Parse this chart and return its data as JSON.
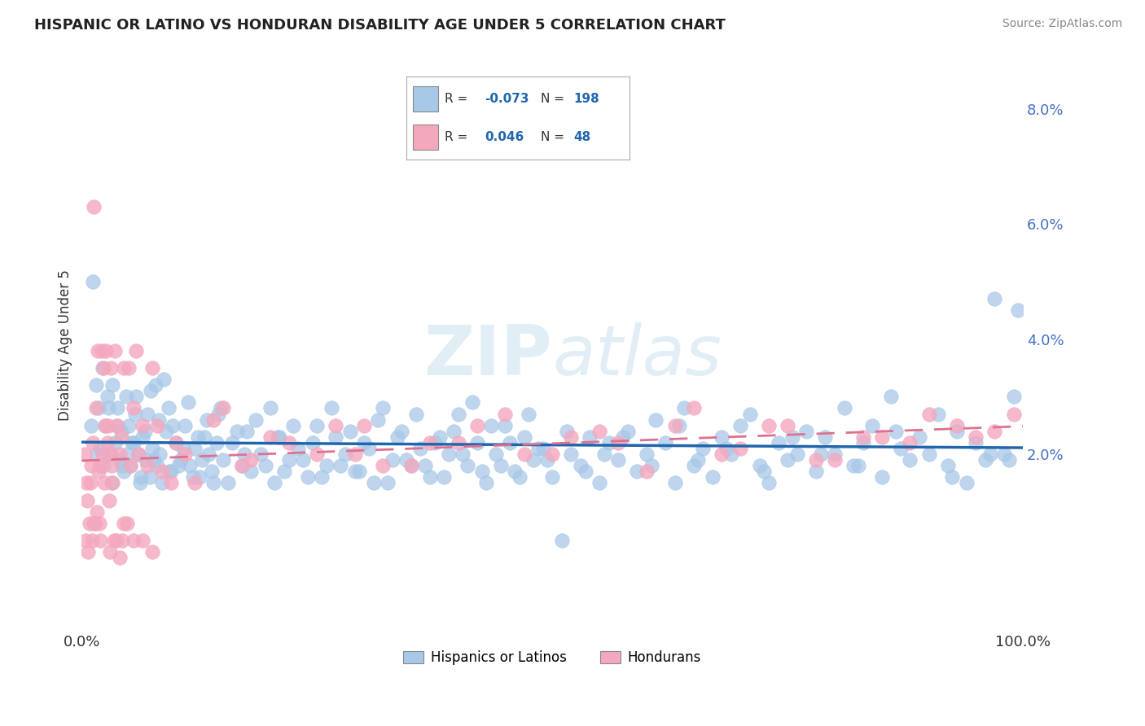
{
  "title": "HISPANIC OR LATINO VS HONDURAN DISABILITY AGE UNDER 5 CORRELATION CHART",
  "source_text": "Source: ZipAtlas.com",
  "ylabel": "Disability Age Under 5",
  "legend_label1": "Hispanics or Latinos",
  "legend_label2": "Hondurans",
  "xlim": [
    0.0,
    100.0
  ],
  "ylim": [
    -1.0,
    8.8
  ],
  "yticks": [
    0.0,
    2.0,
    4.0,
    6.0,
    8.0
  ],
  "ytick_labels": [
    "",
    "2.0%",
    "4.0%",
    "6.0%",
    "8.0%"
  ],
  "color_blue": "#a8c8e8",
  "color_pink": "#f4a8be",
  "line_blue": "#2166ac",
  "line_pink": "#e07090",
  "background_color": "#ffffff",
  "grid_color": "#cccccc",
  "blue_scatter_x": [
    1.2,
    1.5,
    1.8,
    2.0,
    2.3,
    2.5,
    2.7,
    3.0,
    3.2,
    3.5,
    3.8,
    4.0,
    4.2,
    4.5,
    4.8,
    5.0,
    5.2,
    5.5,
    5.8,
    6.0,
    6.2,
    6.5,
    6.8,
    7.0,
    7.2,
    7.5,
    7.8,
    8.0,
    8.3,
    8.5,
    9.0,
    9.2,
    9.5,
    10.0,
    10.5,
    11.0,
    11.5,
    12.0,
    12.5,
    13.0,
    13.5,
    14.0,
    14.5,
    15.0,
    16.0,
    17.0,
    17.5,
    18.0,
    19.0,
    20.0,
    20.5,
    21.0,
    22.0,
    23.0,
    24.0,
    25.0,
    26.0,
    27.0,
    28.0,
    29.0,
    30.0,
    31.0,
    32.0,
    33.0,
    34.0,
    35.0,
    36.0,
    37.0,
    38.0,
    39.0,
    40.0,
    41.0,
    42.0,
    43.0,
    44.0,
    45.0,
    46.0,
    47.0,
    48.0,
    49.0,
    50.0,
    51.0,
    52.0,
    53.0,
    54.0,
    55.0,
    56.0,
    57.0,
    58.0,
    59.0,
    60.0,
    61.0,
    62.0,
    63.0,
    64.0,
    65.0,
    66.0,
    67.0,
    68.0,
    69.0,
    70.0,
    71.0,
    72.0,
    73.0,
    74.0,
    75.0,
    76.0,
    77.0,
    78.0,
    79.0,
    80.0,
    81.0,
    82.0,
    83.0,
    84.0,
    85.0,
    86.0,
    87.0,
    88.0,
    89.0,
    90.0,
    91.0,
    92.0,
    93.0,
    94.0,
    95.0,
    96.0,
    97.0,
    98.0,
    99.0,
    99.5,
    1.0,
    1.6,
    2.2,
    2.8,
    3.3,
    3.7,
    4.3,
    4.7,
    5.3,
    5.7,
    6.3,
    6.7,
    7.3,
    7.7,
    8.2,
    8.7,
    9.3,
    9.7,
    10.3,
    10.8,
    11.3,
    11.8,
    12.3,
    12.8,
    13.3,
    13.8,
    14.3,
    14.8,
    15.5,
    16.5,
    17.3,
    18.5,
    19.5,
    20.8,
    21.5,
    22.5,
    23.5,
    24.5,
    25.5,
    26.5,
    27.5,
    28.5,
    29.5,
    30.5,
    31.5,
    32.5,
    33.5,
    34.5,
    35.5,
    36.5,
    37.5,
    38.5,
    39.5,
    40.5,
    41.5,
    42.5,
    43.5,
    44.5,
    45.5,
    46.5,
    47.5,
    48.5,
    49.5,
    51.5,
    53.5,
    55.5,
    57.5,
    60.5,
    63.5,
    65.5,
    68.5,
    72.5,
    75.5,
    78.5,
    82.5,
    86.5,
    92.5,
    96.5,
    98.5
  ],
  "blue_scatter_y": [
    5.0,
    3.2,
    2.8,
    2.1,
    1.8,
    2.5,
    3.0,
    2.0,
    1.5,
    2.2,
    2.8,
    1.9,
    2.4,
    1.7,
    2.0,
    2.5,
    1.8,
    2.2,
    3.0,
    2.0,
    1.5,
    2.3,
    1.9,
    2.7,
    1.6,
    2.1,
    3.2,
    1.8,
    2.0,
    1.5,
    2.4,
    2.8,
    1.7,
    2.2,
    1.9,
    2.5,
    1.8,
    2.1,
    1.6,
    2.3,
    2.0,
    1.5,
    2.7,
    1.9,
    2.2,
    1.8,
    2.4,
    1.7,
    2.0,
    2.8,
    1.5,
    2.3,
    1.9,
    2.1,
    1.6,
    2.5,
    1.8,
    2.3,
    2.0,
    1.7,
    2.2,
    1.5,
    2.8,
    1.9,
    2.4,
    1.8,
    2.1,
    1.6,
    2.3,
    2.0,
    2.7,
    1.8,
    2.2,
    1.5,
    2.0,
    2.5,
    1.7,
    2.3,
    1.9,
    2.1,
    1.6,
    0.5,
    2.0,
    1.8,
    2.3,
    1.5,
    2.2,
    1.9,
    2.4,
    1.7,
    2.0,
    2.6,
    2.2,
    1.5,
    2.8,
    1.8,
    2.1,
    1.6,
    2.3,
    2.0,
    2.5,
    2.7,
    1.8,
    1.5,
    2.2,
    1.9,
    2.0,
    2.4,
    1.7,
    2.3,
    2.0,
    2.8,
    1.8,
    2.2,
    2.5,
    1.6,
    3.0,
    2.1,
    1.9,
    2.3,
    2.0,
    2.7,
    1.8,
    2.4,
    1.5,
    2.2,
    1.9,
    4.7,
    2.0,
    3.0,
    4.5,
    2.5,
    2.0,
    3.5,
    2.8,
    3.2,
    2.5,
    1.8,
    3.0,
    2.2,
    2.7,
    1.6,
    2.4,
    3.1,
    1.9,
    2.6,
    3.3,
    1.7,
    2.5,
    1.8,
    2.1,
    2.9,
    1.6,
    2.3,
    1.9,
    2.6,
    1.7,
    2.2,
    2.8,
    1.5,
    2.4,
    2.0,
    2.6,
    1.8,
    2.3,
    1.7,
    2.5,
    1.9,
    2.2,
    1.6,
    2.8,
    1.8,
    2.4,
    1.7,
    2.1,
    2.6,
    1.5,
    2.3,
    1.9,
    2.7,
    1.8,
    2.2,
    1.6,
    2.4,
    2.0,
    2.9,
    1.7,
    2.5,
    1.8,
    2.2,
    1.6,
    2.7,
    2.1,
    1.9,
    2.4,
    1.7,
    2.0,
    2.3,
    1.8,
    2.5,
    1.9,
    2.1,
    1.7,
    2.3,
    2.0,
    1.8,
    2.4,
    1.6,
    2.0,
    1.9
  ],
  "pink_scatter_x": [
    0.5,
    0.8,
    1.0,
    1.2,
    1.5,
    1.8,
    2.0,
    2.2,
    2.5,
    2.7,
    3.0,
    3.2,
    3.5,
    3.8,
    4.0,
    4.5,
    5.0,
    5.5,
    6.0,
    7.0,
    8.0,
    10.0,
    12.0,
    15.0,
    18.0,
    20.0,
    22.0,
    25.0,
    27.0,
    29.0,
    30.0,
    32.0,
    35.0,
    37.0,
    40.0,
    42.0,
    45.0,
    47.0,
    50.0,
    52.0,
    55.0,
    57.0,
    60.0,
    63.0,
    65.0,
    68.0,
    70.0,
    73.0,
    75.0,
    78.0,
    80.0,
    83.0,
    85.0,
    88.0,
    90.0,
    93.0,
    95.0,
    97.0,
    99.0,
    2.3,
    2.8,
    3.3,
    4.2,
    5.2,
    6.5,
    8.5,
    11.0,
    14.0,
    17.0,
    1.3,
    1.7,
    2.1,
    2.6,
    3.1,
    4.5,
    5.8,
    7.5,
    9.5,
    0.3,
    0.6,
    0.9,
    1.1,
    1.4,
    1.6,
    1.9,
    2.4,
    2.9,
    3.4,
    3.7,
    4.3,
    4.8,
    5.5,
    6.5,
    7.5,
    0.4,
    0.7,
    1.3,
    2.0,
    3.0,
    4.0
  ],
  "pink_scatter_y": [
    1.5,
    0.8,
    1.8,
    2.2,
    2.8,
    1.7,
    1.8,
    2.0,
    2.5,
    2.2,
    2.0,
    1.8,
    3.8,
    2.5,
    2.0,
    0.8,
    3.5,
    2.8,
    2.0,
    1.8,
    2.5,
    2.2,
    1.5,
    2.8,
    1.9,
    2.3,
    2.2,
    2.0,
    2.5,
    2.0,
    2.5,
    1.8,
    1.8,
    2.2,
    2.2,
    2.5,
    2.7,
    2.0,
    2.0,
    2.3,
    2.4,
    2.2,
    1.7,
    2.5,
    2.8,
    2.0,
    2.1,
    2.5,
    2.5,
    1.9,
    1.9,
    2.3,
    2.3,
    2.2,
    2.7,
    2.5,
    2.3,
    2.4,
    2.7,
    3.5,
    2.5,
    1.5,
    2.3,
    1.8,
    2.5,
    1.7,
    2.0,
    2.6,
    1.8,
    6.3,
    3.8,
    3.8,
    3.8,
    3.5,
    3.5,
    3.8,
    3.5,
    1.5,
    2.0,
    1.2,
    1.5,
    0.5,
    0.8,
    1.0,
    0.8,
    1.5,
    1.2,
    0.5,
    0.5,
    0.5,
    0.8,
    0.5,
    0.5,
    0.3,
    0.5,
    0.3,
    0.8,
    0.5,
    0.3,
    0.2
  ]
}
